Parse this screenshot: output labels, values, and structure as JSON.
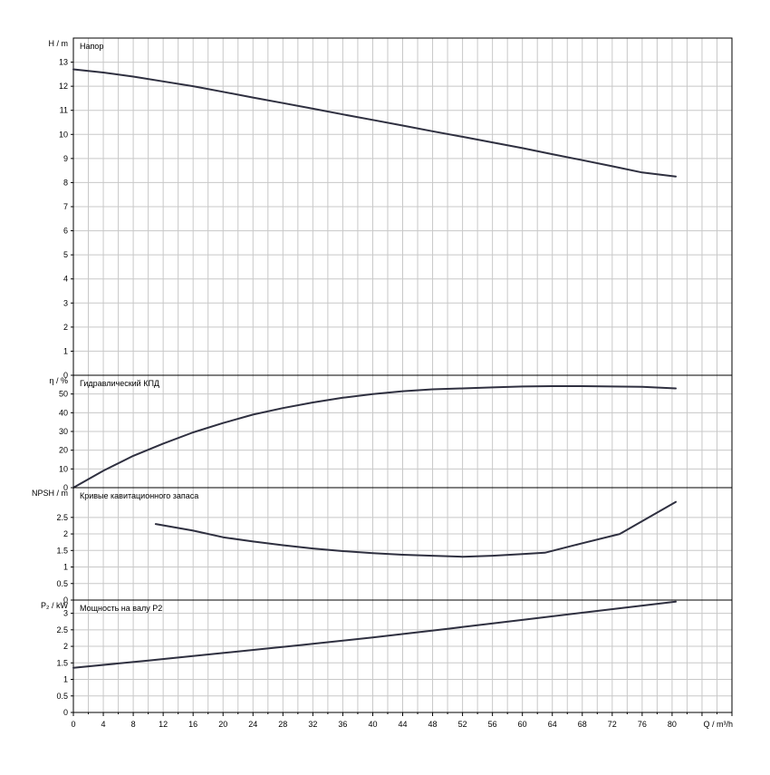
{
  "chart_data": {
    "type": "line",
    "x": {
      "label": "Q / m³/h",
      "range": [
        0,
        88
      ],
      "tick_labels": [
        "0",
        "4",
        "8",
        "12",
        "16",
        "20",
        "24",
        "28",
        "32",
        "36",
        "40",
        "44",
        "48",
        "52",
        "56",
        "60",
        "64",
        "68",
        "72",
        "76",
        "80"
      ]
    },
    "panels": [
      {
        "id": "head",
        "title": "Напор",
        "ylabel": "H / m",
        "ylim": [
          0,
          14
        ],
        "yticks": [
          0,
          1,
          2,
          3,
          4,
          5,
          6,
          7,
          8,
          9,
          10,
          11,
          12,
          13
        ],
        "tick_labels": [
          "0",
          "1",
          "2",
          "3",
          "4",
          "5",
          "6",
          "7",
          "8",
          "9",
          "10",
          "11",
          "12",
          "13"
        ],
        "series": [
          {
            "x": [
              0,
              4,
              8,
              12,
              16,
              20,
              24,
              28,
              32,
              36,
              40,
              44,
              48,
              52,
              56,
              60,
              64,
              68,
              72,
              76,
              80.5
            ],
            "y": [
              12.7,
              12.57,
              12.4,
              12.2,
              12.0,
              11.77,
              11.53,
              11.3,
              11.07,
              10.83,
              10.6,
              10.37,
              10.13,
              9.9,
              9.67,
              9.43,
              9.18,
              8.93,
              8.68,
              8.42,
              8.25
            ]
          }
        ]
      },
      {
        "id": "efficiency",
        "title": "Гидравлический КПД",
        "ylabel": "η / %",
        "ylim": [
          0,
          60
        ],
        "yticks": [
          0,
          10,
          20,
          30,
          40,
          50
        ],
        "tick_labels": [
          "0",
          "10",
          "20",
          "30",
          "40",
          "50"
        ],
        "series": [
          {
            "x": [
              0,
              4,
              8,
              12,
              16,
              20,
              24,
              28,
              32,
              36,
              40,
              44,
              48,
              52,
              56,
              60,
              64,
              68,
              72,
              76,
              80.5
            ],
            "y": [
              0,
              9,
              17,
              23.5,
              29.5,
              34.5,
              39,
              42.5,
              45.5,
              48,
              50,
              51.5,
              52.5,
              53,
              53.5,
              54,
              54.2,
              54.2,
              54,
              53.8,
              53
            ]
          }
        ]
      },
      {
        "id": "npsh",
        "title": "Кривые кавитационного запаса",
        "ylabel": "NPSH / m",
        "ylim": [
          0,
          3.4
        ],
        "yticks": [
          0,
          0.5,
          1,
          1.5,
          2,
          2.5
        ],
        "tick_labels": [
          "0",
          "0.5",
          "1",
          "1.5",
          "2",
          "2.5"
        ],
        "series": [
          {
            "x": [
              11,
              16,
              20,
              24,
              28,
              32,
              36,
              40,
              44,
              48,
              52,
              56,
              60,
              63,
              68,
              73,
              80.5
            ],
            "y": [
              2.3,
              2.1,
              1.9,
              1.77,
              1.66,
              1.56,
              1.48,
              1.42,
              1.37,
              1.34,
              1.31,
              1.34,
              1.39,
              1.43,
              1.72,
              2.0,
              2.97
            ]
          }
        ]
      },
      {
        "id": "power",
        "title": "Мощность на валу P2",
        "ylabel": "P₂ / kW",
        "ylim": [
          0,
          3.4
        ],
        "yticks": [
          0,
          0.5,
          1,
          1.5,
          2,
          2.5,
          3
        ],
        "tick_labels": [
          "0",
          "0.5",
          "1",
          "1.5",
          "2",
          "2.5",
          "3"
        ],
        "series": [
          {
            "x": [
              0,
              10,
              20,
              30,
              40,
              50,
              60,
              70,
              80.5
            ],
            "y": [
              1.35,
              1.57,
              1.8,
              2.03,
              2.27,
              2.53,
              2.8,
              3.07,
              3.35
            ]
          }
        ]
      }
    ],
    "grid": true,
    "colors": {
      "curve": "#2f3040",
      "grid": "#c8c8c8",
      "frame": "#000000"
    }
  }
}
